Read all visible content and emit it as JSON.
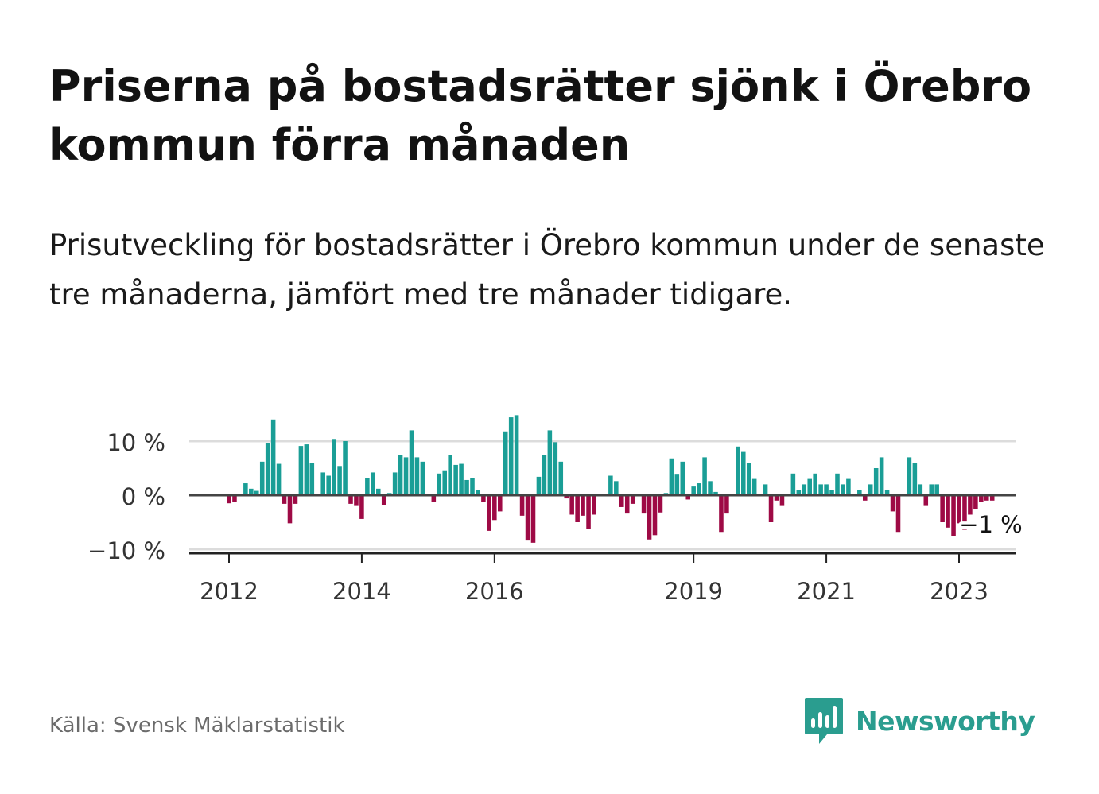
{
  "title": "Priserna på bostadsrätter sjönk i Örebro kommun förra månaden",
  "subtitle": "Prisutveckling för bostadsrätter i Örebro kommun under de senaste tre månaderna, jämfört med tre månader tidigare.",
  "source": "Källa: Svensk Mäklarstatistik",
  "brand": {
    "name": "Newsworthy",
    "logo_icon": "bar-chart-speech-bubble-icon",
    "color": "#2a9d8f"
  },
  "colors": {
    "positive": "#1a9e96",
    "negative": "#9e0a45",
    "grid": "#dcdcdc",
    "axis": "#444444"
  },
  "chart_data": {
    "type": "bar",
    "x_start": "2012-01",
    "x_end": "2023-06",
    "x_ticks": [
      {
        "year": 2012,
        "label": "2012"
      },
      {
        "year": 2014,
        "label": "2014"
      },
      {
        "year": 2016,
        "label": "2016"
      },
      {
        "year": 2019,
        "label": "2019"
      },
      {
        "year": 2021,
        "label": "2021"
      },
      {
        "year": 2023,
        "label": "2023"
      }
    ],
    "y_ticks": [
      {
        "value": 10,
        "label": "10 %"
      },
      {
        "value": 0,
        "label": "0 %"
      },
      {
        "value": -10,
        "label": "−10 %"
      }
    ],
    "ylim": [
      -10,
      15
    ],
    "ylabel": "",
    "xlabel": "",
    "annotation": {
      "text": "−1 %",
      "value": -1
    },
    "values": [
      -1.5,
      -1.2,
      0.0,
      2.2,
      1.2,
      0.8,
      6.2,
      9.6,
      14.0,
      5.8,
      -1.6,
      -5.2,
      -1.6,
      9.1,
      9.4,
      6.0,
      0.0,
      4.2,
      3.6,
      10.4,
      5.4,
      10.0,
      -1.6,
      -2.0,
      -4.4,
      3.2,
      4.2,
      1.2,
      -1.8,
      0.4,
      4.2,
      7.4,
      7.0,
      12.0,
      7.0,
      6.2,
      0.0,
      -1.2,
      4.0,
      4.6,
      7.4,
      5.6,
      5.8,
      2.8,
      3.2,
      1.0,
      -1.2,
      -6.6,
      -4.6,
      -3.0,
      11.8,
      14.4,
      14.8,
      -3.8,
      -8.4,
      -8.8,
      3.4,
      7.4,
      12.0,
      9.8,
      6.2,
      -0.6,
      -3.6,
      -5.0,
      -3.8,
      -6.2,
      -3.6,
      0.0,
      0.0,
      3.6,
      2.6,
      -2.2,
      -3.4,
      -1.6,
      0.0,
      -3.4,
      -8.2,
      -7.4,
      -3.2,
      0.4,
      6.8,
      3.8,
      6.2,
      -0.8,
      1.6,
      2.2,
      7.0,
      2.6,
      0.6,
      -6.8,
      -3.4,
      0.0,
      9.0,
      8.0,
      6.0,
      3.0,
      0.0,
      2.0,
      -5.0,
      -1.0,
      -2.0,
      0.0,
      4.0,
      1.0,
      2.0,
      3.0,
      4.0,
      2.0,
      2.0,
      1.0,
      4.0,
      2.0,
      3.0,
      0.0,
      1.0,
      -1.0,
      2.0,
      5.0,
      7.0,
      1.0,
      -3.0,
      -6.8,
      0.0,
      7.0,
      6.0,
      2.0,
      -2.0,
      2.0,
      2.0,
      -5.0,
      -6.0,
      -7.6,
      -5.2,
      -6.4,
      -3.6,
      -2.6,
      -1.2,
      -1.0,
      -1.0
    ]
  }
}
